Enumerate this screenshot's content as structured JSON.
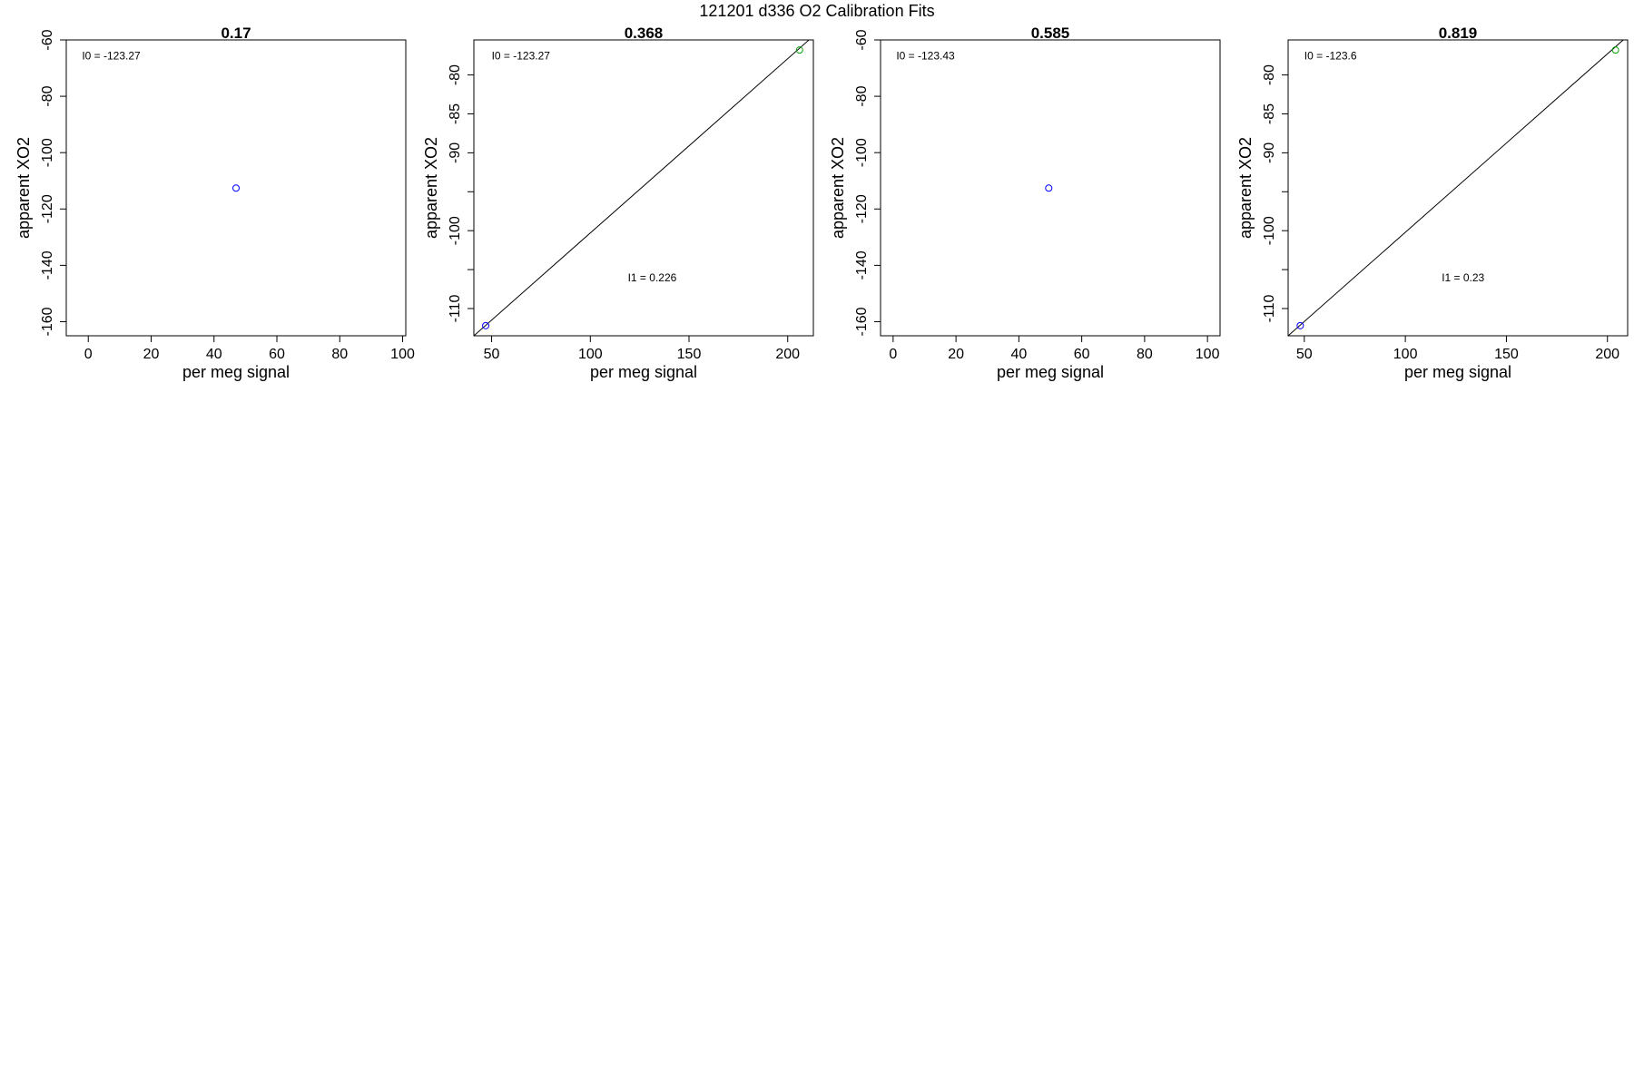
{
  "figure": {
    "title": "121201   d336   O2 Calibration Fits"
  },
  "chart_data": [
    {
      "type": "scatter",
      "title": "0.17",
      "xlabel": "per meg signal",
      "ylabel": "apparent XO2",
      "xlim": [
        -7,
        101
      ],
      "ylim": [
        -165,
        -60
      ],
      "xticks": [
        0,
        20,
        40,
        60,
        80,
        100
      ],
      "yticks": [
        -60,
        -80,
        -100,
        -120,
        -140,
        -160
      ],
      "annotations": [
        {
          "text": "I0 =  -123.27",
          "x": -2,
          "y": -67
        }
      ],
      "points": [
        {
          "x": 47,
          "y": -112.6,
          "color": "#0000ff"
        }
      ],
      "fit_line": null
    },
    {
      "type": "scatter",
      "title": "0.368",
      "xlabel": "per meg signal",
      "ylabel": "apparent XO2",
      "xlim": [
        41,
        213
      ],
      "ylim": [
        -113.5,
        -75.5
      ],
      "xticks": [
        50,
        100,
        150,
        200
      ],
      "yticks": [
        -80,
        -85,
        -90,
        -95,
        -100,
        -105,
        -110
      ],
      "ytick_labels": [
        "-80",
        "-85",
        "-90",
        "",
        "-100",
        "",
        "-110"
      ],
      "annotations": [
        {
          "text": "I0 =  -123.27",
          "x": 50,
          "y": -78
        },
        {
          "text": "I1 =  0.226",
          "x": 119,
          "y": -106.5
        }
      ],
      "points": [
        {
          "x": 47,
          "y": -112.2,
          "color": "#0000ff"
        },
        {
          "x": 206,
          "y": -76.8,
          "color": "#00a000"
        }
      ],
      "fit_line": {
        "x": [
          41,
          213
        ],
        "y": [
          -113.5,
          -75.0
        ]
      }
    },
    {
      "type": "scatter",
      "title": "0.585",
      "xlabel": "per meg signal",
      "ylabel": "apparent XO2",
      "xlim": [
        -4,
        104
      ],
      "ylim": [
        -165,
        -60
      ],
      "xticks": [
        0,
        20,
        40,
        60,
        80,
        100
      ],
      "yticks": [
        -60,
        -80,
        -100,
        -120,
        -140,
        -160
      ],
      "annotations": [
        {
          "text": "I0 =  -123.43",
          "x": 1,
          "y": -67
        }
      ],
      "points": [
        {
          "x": 49.5,
          "y": -112.6,
          "color": "#0000ff"
        }
      ],
      "fit_line": null
    },
    {
      "type": "scatter",
      "title": "0.819",
      "xlabel": "per meg signal",
      "ylabel": "apparent XO2",
      "xlim": [
        42,
        210
      ],
      "ylim": [
        -113.5,
        -75.5
      ],
      "xticks": [
        50,
        100,
        150,
        200
      ],
      "yticks": [
        -80,
        -85,
        -90,
        -95,
        -100,
        -105,
        -110
      ],
      "ytick_labels": [
        "-80",
        "-85",
        "-90",
        "",
        "-100",
        "",
        "-110"
      ],
      "annotations": [
        {
          "text": "I0 =  -123.6",
          "x": 50,
          "y": -78
        },
        {
          "text": "I1 =  0.23",
          "x": 118,
          "y": -106.5
        }
      ],
      "points": [
        {
          "x": 48,
          "y": -112.2,
          "color": "#0000ff"
        },
        {
          "x": 204,
          "y": -76.8,
          "color": "#00a000"
        }
      ],
      "fit_line": {
        "x": [
          42,
          210
        ],
        "y": [
          -113.5,
          -75.0
        ]
      }
    }
  ]
}
